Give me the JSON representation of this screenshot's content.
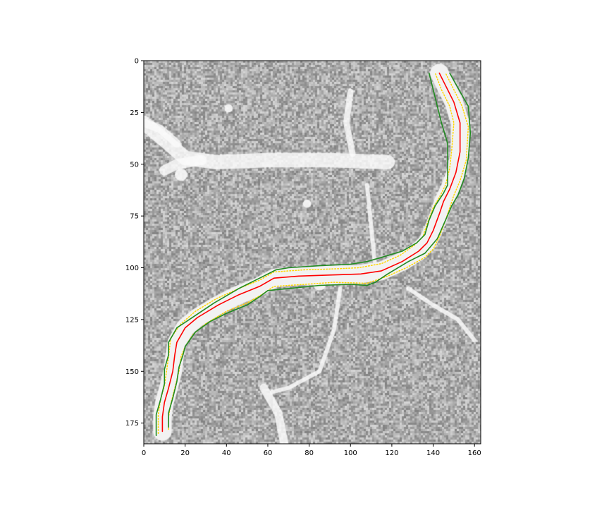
{
  "chart_data": {
    "type": "image_with_line_overlays",
    "image": {
      "description_kind": "grayscale noisy micrograph",
      "extent": {
        "x": [
          0,
          163
        ],
        "y": [
          185,
          0
        ]
      },
      "colormap": "gray",
      "background_gray_range": [
        130,
        215
      ],
      "bright_features": [
        {
          "kind": "branch",
          "path": [
            [
              0,
              30
            ],
            [
              12,
              40
            ],
            [
              20,
              47
            ],
            [
              35,
              49
            ],
            [
              60,
              48
            ],
            [
              90,
              48
            ],
            [
              118,
              49
            ]
          ],
          "width": 7
        },
        {
          "kind": "branch",
          "path": [
            [
              0,
              30
            ],
            [
              8,
              33
            ],
            [
              16,
              40
            ]
          ],
          "width": 4
        },
        {
          "kind": "branch",
          "path": [
            [
              10,
              53
            ],
            [
              16,
              50
            ],
            [
              28,
              48
            ]
          ],
          "width": 5
        },
        {
          "kind": "branch",
          "path": [
            [
              100,
              15
            ],
            [
              98,
              30
            ],
            [
              101,
              45
            ]
          ],
          "width": 3
        },
        {
          "kind": "branch",
          "path": [
            [
              108,
              60
            ],
            [
              110,
              80
            ],
            [
              112,
              100
            ]
          ],
          "width": 2
        },
        {
          "kind": "branch",
          "path": [
            [
              95,
              110
            ],
            [
              92,
              130
            ],
            [
              85,
              150
            ],
            [
              70,
              158
            ],
            [
              62,
              160
            ]
          ],
          "width": 2
        },
        {
          "kind": "branch",
          "path": [
            [
              58,
              158
            ],
            [
              65,
              170
            ],
            [
              68,
              185
            ]
          ],
          "width": 4
        },
        {
          "kind": "branch",
          "path": [
            [
              128,
              110
            ],
            [
              140,
              118
            ],
            [
              152,
              125
            ],
            [
              160,
              135
            ]
          ],
          "width": 2
        },
        {
          "kind": "blob",
          "center": [
            41,
            23
          ],
          "radius": 2
        },
        {
          "kind": "blob",
          "center": [
            79,
            69
          ],
          "radius": 2
        },
        {
          "kind": "blob",
          "center": [
            18,
            55
          ],
          "radius": 3
        },
        {
          "kind": "blob",
          "center": [
            85,
            108
          ],
          "radius": 3
        }
      ]
    },
    "x_axis": {
      "range": [
        0,
        163
      ],
      "ticks": [
        0,
        20,
        40,
        60,
        80,
        100,
        120,
        140,
        160
      ],
      "label": ""
    },
    "y_axis": {
      "range": [
        185,
        0
      ],
      "inverted": true,
      "ticks": [
        0,
        25,
        50,
        75,
        100,
        125,
        150,
        175
      ],
      "label": ""
    },
    "title": "",
    "grid": false,
    "legend": "none",
    "bright_vessel": {
      "color": "#f2f2f2",
      "width": 9,
      "points": [
        [
          9,
          179
        ],
        [
          9,
          172
        ],
        [
          10,
          165
        ],
        [
          12,
          158
        ],
        [
          14,
          150
        ],
        [
          15,
          142
        ],
        [
          16,
          136
        ],
        [
          20,
          129
        ],
        [
          26,
          124
        ],
        [
          36,
          118
        ],
        [
          46,
          113
        ],
        [
          56,
          109
        ],
        [
          63,
          105
        ],
        [
          75,
          104
        ],
        [
          90,
          103.5
        ],
        [
          105,
          103
        ],
        [
          115,
          101.5
        ],
        [
          125,
          97
        ],
        [
          133,
          92
        ],
        [
          137,
          88
        ],
        [
          140,
          82
        ],
        [
          143,
          74
        ],
        [
          145,
          68
        ],
        [
          148,
          62
        ],
        [
          151,
          54
        ],
        [
          153,
          44
        ],
        [
          153,
          30
        ],
        [
          150,
          20
        ],
        [
          146,
          12
        ],
        [
          143,
          6
        ]
      ]
    },
    "series": [
      {
        "color": "#ff0000",
        "style": "solid",
        "points": [
          [
            9,
            179
          ],
          [
            9,
            172
          ],
          [
            10,
            165
          ],
          [
            12,
            158
          ],
          [
            14,
            150
          ],
          [
            15,
            142
          ],
          [
            16,
            136
          ],
          [
            20,
            129
          ],
          [
            26,
            124
          ],
          [
            36,
            118
          ],
          [
            46,
            113
          ],
          [
            56,
            109
          ],
          [
            63,
            105
          ],
          [
            75,
            104
          ],
          [
            90,
            103.5
          ],
          [
            105,
            103
          ],
          [
            115,
            101.5
          ],
          [
            125,
            97
          ],
          [
            133,
            92
          ],
          [
            137,
            88
          ],
          [
            140,
            82
          ],
          [
            143,
            74
          ],
          [
            145,
            68
          ],
          [
            148,
            62
          ],
          [
            151,
            54
          ],
          [
            153,
            44
          ],
          [
            153,
            30
          ],
          [
            150,
            20
          ],
          [
            146,
            12
          ],
          [
            143,
            6
          ]
        ]
      },
      {
        "color": "#ffd700",
        "style": "dotted",
        "points": [
          [
            7,
            180
          ],
          [
            7,
            171
          ],
          [
            8,
            164
          ],
          [
            10,
            157
          ],
          [
            11,
            150
          ],
          [
            12,
            143
          ],
          [
            13,
            134
          ],
          [
            18,
            127
          ],
          [
            25,
            121
          ],
          [
            35,
            115
          ],
          [
            46,
            110
          ],
          [
            56,
            106
          ],
          [
            63,
            102
          ],
          [
            78,
            101
          ],
          [
            93,
            100.5
          ],
          [
            104,
            100
          ],
          [
            115,
            98
          ],
          [
            124,
            94
          ],
          [
            131,
            89
          ],
          [
            135,
            85
          ],
          [
            137,
            79
          ],
          [
            140,
            71
          ],
          [
            143,
            66
          ],
          [
            146,
            60
          ],
          [
            148,
            52
          ],
          [
            149,
            43
          ],
          [
            150,
            30
          ],
          [
            148,
            22
          ],
          [
            144,
            14
          ],
          [
            141,
            6
          ]
        ]
      },
      {
        "color": "#ffd700",
        "style": "dotted",
        "points": [
          [
            12,
            178
          ],
          [
            12,
            172
          ],
          [
            13,
            166
          ],
          [
            15,
            158
          ],
          [
            17,
            150
          ],
          [
            18,
            143
          ],
          [
            20,
            138
          ],
          [
            24,
            132
          ],
          [
            30,
            127
          ],
          [
            40,
            121
          ],
          [
            50,
            117
          ],
          [
            57,
            113
          ],
          [
            63,
            109
          ],
          [
            78,
            108
          ],
          [
            92,
            107
          ],
          [
            108,
            107.5
          ],
          [
            118,
            104
          ],
          [
            127,
            100
          ],
          [
            136,
            95
          ],
          [
            140,
            91
          ],
          [
            143,
            85
          ],
          [
            146,
            77
          ],
          [
            148,
            71
          ],
          [
            150,
            65
          ],
          [
            153,
            58
          ],
          [
            156,
            48
          ],
          [
            157,
            32
          ],
          [
            154,
            22
          ],
          [
            150,
            14
          ],
          [
            146,
            6
          ]
        ]
      },
      {
        "color": "#228b22",
        "style": "solid",
        "points": [
          [
            6,
            181
          ],
          [
            6,
            171
          ],
          [
            8,
            164
          ],
          [
            10,
            156
          ],
          [
            10,
            149
          ],
          [
            12,
            142
          ],
          [
            12,
            136
          ],
          [
            16,
            129
          ],
          [
            22,
            125
          ],
          [
            34,
            117
          ],
          [
            46,
            110
          ],
          [
            58,
            104
          ],
          [
            64,
            101
          ],
          [
            70,
            100
          ],
          [
            85,
            99
          ],
          [
            100,
            98.3
          ],
          [
            108,
            97
          ],
          [
            115,
            95
          ],
          [
            125,
            92
          ],
          [
            132,
            88
          ],
          [
            136,
            84
          ],
          [
            138,
            77
          ],
          [
            141,
            70
          ],
          [
            145,
            64
          ],
          [
            147,
            60
          ],
          [
            147,
            50
          ],
          [
            147,
            40
          ],
          [
            144,
            30
          ],
          [
            142,
            22
          ],
          [
            140,
            14
          ],
          [
            138,
            6
          ]
        ]
      },
      {
        "color": "#228b22",
        "style": "solid",
        "points": [
          [
            12,
            177
          ],
          [
            12,
            170
          ],
          [
            14,
            163
          ],
          [
            16,
            155
          ],
          [
            17,
            148
          ],
          [
            19,
            142
          ],
          [
            20,
            138
          ],
          [
            25,
            131
          ],
          [
            32,
            126
          ],
          [
            40,
            122
          ],
          [
            50,
            118
          ],
          [
            56,
            114
          ],
          [
            60,
            111
          ],
          [
            70,
            110
          ],
          [
            85,
            108.5
          ],
          [
            100,
            108
          ],
          [
            108,
            108.5
          ],
          [
            112,
            107
          ],
          [
            118,
            103
          ],
          [
            128,
            97
          ],
          [
            136,
            93
          ],
          [
            142,
            86
          ],
          [
            146,
            77
          ],
          [
            149,
            70
          ],
          [
            152,
            65
          ],
          [
            155,
            57
          ],
          [
            157,
            47
          ],
          [
            158,
            35
          ],
          [
            157,
            22
          ],
          [
            153,
            15
          ],
          [
            148,
            6
          ]
        ]
      }
    ]
  }
}
